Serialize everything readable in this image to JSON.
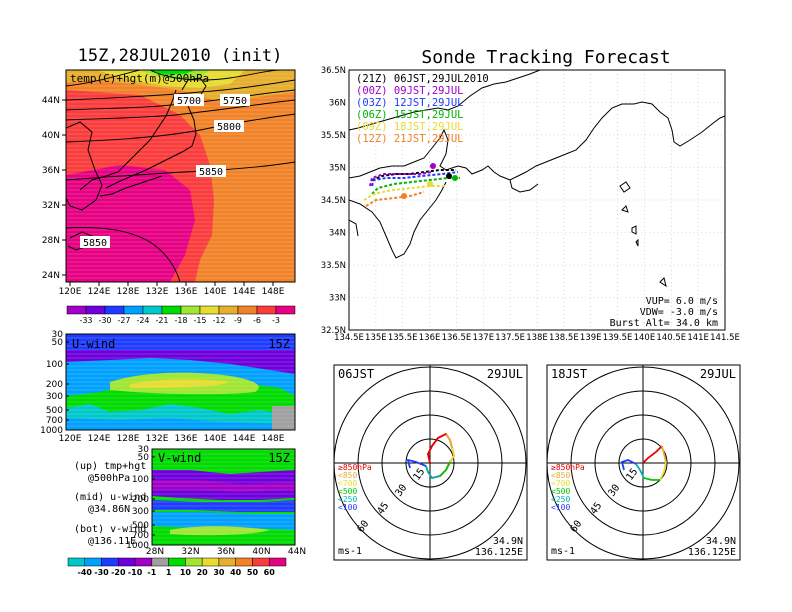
{
  "chart_data": [
    {
      "type": "heatmap",
      "title": "15Z,28JUL2010 (init)",
      "overlay_label": "temp(C)+hgt(m)@500hPa",
      "x_ticks": [
        "120E",
        "124E",
        "128E",
        "132E",
        "136E",
        "140E",
        "144E",
        "148E"
      ],
      "y_ticks": [
        "44N",
        "40N",
        "36N",
        "32N",
        "28N",
        "24N"
      ],
      "contour_labels": [
        "5700",
        "5750",
        "5800",
        "5850",
        "5850"
      ],
      "colorbar_labels": [
        "-33",
        "-30",
        "-27",
        "-24",
        "-21",
        "-18",
        "-15",
        "-12",
        "-9",
        "-6",
        "-3"
      ],
      "colorbar_colors": [
        "#a000c8",
        "#6e00dc",
        "#1e3cff",
        "#00a0ff",
        "#00c8c8",
        "#00dc00",
        "#a0e632",
        "#e6dc32",
        "#e6af2d",
        "#f08228",
        "#fa3c3c",
        "#e60082"
      ]
    },
    {
      "type": "heatmap",
      "title": "U-wind",
      "time": "15Z",
      "y_ticks": [
        "30",
        "50",
        "100",
        "200",
        "300",
        "500",
        "700",
        "1000"
      ],
      "x_ticks": [
        "120E",
        "124E",
        "128E",
        "132E",
        "136E",
        "140E",
        "144E",
        "148E"
      ]
    },
    {
      "type": "heatmap",
      "title": "V-wind",
      "time": "15Z",
      "y_ticks": [
        "30",
        "50",
        "100",
        "200",
        "300",
        "500",
        "700",
        "1000"
      ],
      "x_ticks": [
        "28N",
        "32N",
        "36N",
        "40N",
        "44N"
      ],
      "colorbar_labels": [
        "-40",
        "-30",
        "-20",
        "-10",
        "-1",
        "1",
        "10",
        "20",
        "30",
        "40",
        "50",
        "60"
      ],
      "colorbar_colors": [
        "#00c8c8",
        "#00a0ff",
        "#1e3cff",
        "#6e00dc",
        "#a000c8",
        "#a0a0a0",
        "#00dc00",
        "#a0e632",
        "#e6dc32",
        "#e6af2d",
        "#f08228",
        "#fa3c3c",
        "#e60082"
      ]
    },
    {
      "type": "line",
      "title": "Sonde Tracking Forecast",
      "x_ticks": [
        "134.5E",
        "135E",
        "135.5E",
        "136E",
        "136.5E",
        "137E",
        "137.5E",
        "138E",
        "138.5E",
        "139E",
        "139.5E",
        "140E",
        "140.5E",
        "141E",
        "141.5E"
      ],
      "y_ticks": [
        "36.5N",
        "36N",
        "35.5N",
        "35N",
        "34.5N",
        "34N",
        "33.5N",
        "33N",
        "32.5N"
      ],
      "xlim": [
        134.5,
        141.5
      ],
      "ylim": [
        32.5,
        36.5
      ],
      "legend": [
        {
          "label": "(21Z)  06JST,29JUL2010",
          "color": "#000000"
        },
        {
          "label": "(00Z)  09JST,29JUL",
          "color": "#a000c8"
        },
        {
          "label": "(03Z)  12JST,29JUL",
          "color": "#1e3cff"
        },
        {
          "label": "(06Z)  15JST,29JUL",
          "color": "#00b400"
        },
        {
          "label": "(09Z)  18JST,29JUL",
          "color": "#e6dc32"
        },
        {
          "label": "(12Z)  21JST,29JUL",
          "color": "#f08228"
        }
      ],
      "info": [
        "VUP=  6.0  m/s",
        "VDW= -3.0  m/s",
        "Burst Alt=  34.0  km"
      ]
    },
    {
      "type": "line",
      "title": "06JST",
      "date": "29JUL",
      "ring_labels": [
        "15",
        "30",
        "45",
        "60"
      ],
      "level_legend": [
        {
          "label": "≥850hPa",
          "color": "#e60000"
        },
        {
          "label": "<850",
          "color": "#e6af2d"
        },
        {
          "label": "<700",
          "color": "#e6dc32"
        },
        {
          "label": "<500",
          "color": "#00c800"
        },
        {
          "label": "<250",
          "color": "#00b4b4"
        },
        {
          "label": "<100",
          "color": "#1e3cff"
        }
      ],
      "unit": "ms-1",
      "location": [
        "34.9N",
        "136.125E"
      ]
    },
    {
      "type": "line",
      "title": "18JST",
      "date": "29JUL",
      "ring_labels": [
        "15",
        "30",
        "45",
        "60"
      ],
      "level_legend": [
        {
          "label": "≥850hPa",
          "color": "#e60000"
        },
        {
          "label": "<850",
          "color": "#e6af2d"
        },
        {
          "label": "<700",
          "color": "#e6dc32"
        },
        {
          "label": "<500",
          "color": "#00c800"
        },
        {
          "label": "<250",
          "color": "#00b4b4"
        },
        {
          "label": "<100",
          "color": "#1e3cff"
        }
      ],
      "unit": "ms-1",
      "location": [
        "34.9N",
        "136.125E"
      ]
    }
  ],
  "notes": {
    "up": [
      "(up) tmp+hgt",
      "@500hPa"
    ],
    "mid": [
      "(mid) u-wind",
      "@34.86N"
    ],
    "bot": [
      "(bot) v-wind",
      "@136.11E"
    ]
  }
}
